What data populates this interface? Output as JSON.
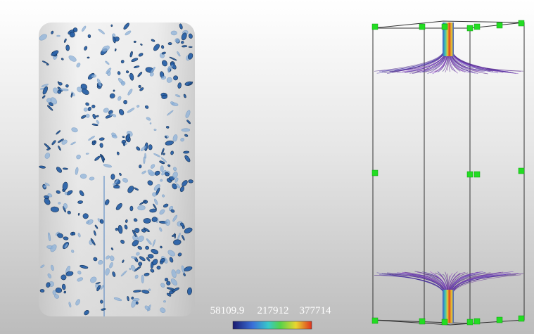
{
  "colorbar": {
    "labels": [
      "58109.9",
      "217912",
      "377714"
    ]
  }
}
